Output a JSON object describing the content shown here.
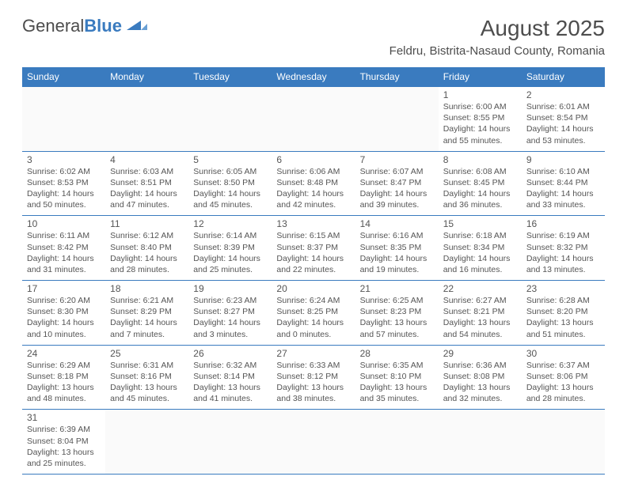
{
  "logo": {
    "text1": "General",
    "text2": "Blue"
  },
  "title": "August 2025",
  "location": "Feldru, Bistrita-Nasaud County, Romania",
  "colors": {
    "header_bg": "#3a7bbf",
    "header_fg": "#ffffff",
    "border": "#3a7bbf",
    "text": "#555555"
  },
  "day_headers": [
    "Sunday",
    "Monday",
    "Tuesday",
    "Wednesday",
    "Thursday",
    "Friday",
    "Saturday"
  ],
  "weeks": [
    [
      null,
      null,
      null,
      null,
      null,
      {
        "n": "1",
        "sr": "6:00 AM",
        "ss": "8:55 PM",
        "dl": "14 hours and 55 minutes."
      },
      {
        "n": "2",
        "sr": "6:01 AM",
        "ss": "8:54 PM",
        "dl": "14 hours and 53 minutes."
      }
    ],
    [
      {
        "n": "3",
        "sr": "6:02 AM",
        "ss": "8:53 PM",
        "dl": "14 hours and 50 minutes."
      },
      {
        "n": "4",
        "sr": "6:03 AM",
        "ss": "8:51 PM",
        "dl": "14 hours and 47 minutes."
      },
      {
        "n": "5",
        "sr": "6:05 AM",
        "ss": "8:50 PM",
        "dl": "14 hours and 45 minutes."
      },
      {
        "n": "6",
        "sr": "6:06 AM",
        "ss": "8:48 PM",
        "dl": "14 hours and 42 minutes."
      },
      {
        "n": "7",
        "sr": "6:07 AM",
        "ss": "8:47 PM",
        "dl": "14 hours and 39 minutes."
      },
      {
        "n": "8",
        "sr": "6:08 AM",
        "ss": "8:45 PM",
        "dl": "14 hours and 36 minutes."
      },
      {
        "n": "9",
        "sr": "6:10 AM",
        "ss": "8:44 PM",
        "dl": "14 hours and 33 minutes."
      }
    ],
    [
      {
        "n": "10",
        "sr": "6:11 AM",
        "ss": "8:42 PM",
        "dl": "14 hours and 31 minutes."
      },
      {
        "n": "11",
        "sr": "6:12 AM",
        "ss": "8:40 PM",
        "dl": "14 hours and 28 minutes."
      },
      {
        "n": "12",
        "sr": "6:14 AM",
        "ss": "8:39 PM",
        "dl": "14 hours and 25 minutes."
      },
      {
        "n": "13",
        "sr": "6:15 AM",
        "ss": "8:37 PM",
        "dl": "14 hours and 22 minutes."
      },
      {
        "n": "14",
        "sr": "6:16 AM",
        "ss": "8:35 PM",
        "dl": "14 hours and 19 minutes."
      },
      {
        "n": "15",
        "sr": "6:18 AM",
        "ss": "8:34 PM",
        "dl": "14 hours and 16 minutes."
      },
      {
        "n": "16",
        "sr": "6:19 AM",
        "ss": "8:32 PM",
        "dl": "14 hours and 13 minutes."
      }
    ],
    [
      {
        "n": "17",
        "sr": "6:20 AM",
        "ss": "8:30 PM",
        "dl": "14 hours and 10 minutes."
      },
      {
        "n": "18",
        "sr": "6:21 AM",
        "ss": "8:29 PM",
        "dl": "14 hours and 7 minutes."
      },
      {
        "n": "19",
        "sr": "6:23 AM",
        "ss": "8:27 PM",
        "dl": "14 hours and 3 minutes."
      },
      {
        "n": "20",
        "sr": "6:24 AM",
        "ss": "8:25 PM",
        "dl": "14 hours and 0 minutes."
      },
      {
        "n": "21",
        "sr": "6:25 AM",
        "ss": "8:23 PM",
        "dl": "13 hours and 57 minutes."
      },
      {
        "n": "22",
        "sr": "6:27 AM",
        "ss": "8:21 PM",
        "dl": "13 hours and 54 minutes."
      },
      {
        "n": "23",
        "sr": "6:28 AM",
        "ss": "8:20 PM",
        "dl": "13 hours and 51 minutes."
      }
    ],
    [
      {
        "n": "24",
        "sr": "6:29 AM",
        "ss": "8:18 PM",
        "dl": "13 hours and 48 minutes."
      },
      {
        "n": "25",
        "sr": "6:31 AM",
        "ss": "8:16 PM",
        "dl": "13 hours and 45 minutes."
      },
      {
        "n": "26",
        "sr": "6:32 AM",
        "ss": "8:14 PM",
        "dl": "13 hours and 41 minutes."
      },
      {
        "n": "27",
        "sr": "6:33 AM",
        "ss": "8:12 PM",
        "dl": "13 hours and 38 minutes."
      },
      {
        "n": "28",
        "sr": "6:35 AM",
        "ss": "8:10 PM",
        "dl": "13 hours and 35 minutes."
      },
      {
        "n": "29",
        "sr": "6:36 AM",
        "ss": "8:08 PM",
        "dl": "13 hours and 32 minutes."
      },
      {
        "n": "30",
        "sr": "6:37 AM",
        "ss": "8:06 PM",
        "dl": "13 hours and 28 minutes."
      }
    ],
    [
      {
        "n": "31",
        "sr": "6:39 AM",
        "ss": "8:04 PM",
        "dl": "13 hours and 25 minutes."
      },
      null,
      null,
      null,
      null,
      null,
      null
    ]
  ],
  "labels": {
    "sunrise": "Sunrise: ",
    "sunset": "Sunset: ",
    "daylight": "Daylight: "
  }
}
